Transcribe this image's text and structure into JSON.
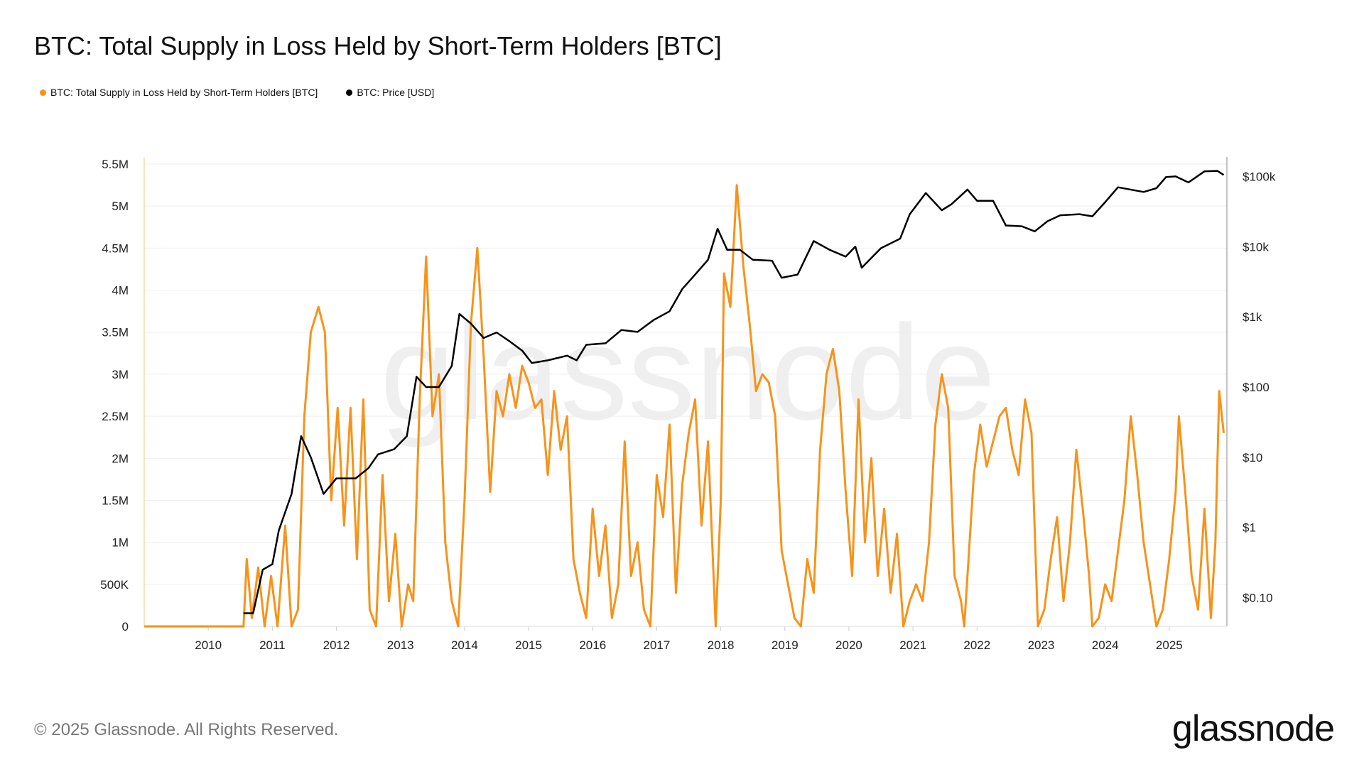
{
  "title": "BTC: Total Supply in Loss Held by Short-Term Holders [BTC]",
  "footer": "© 2025 Glassnode. All Rights Reserved.",
  "logo": "glassnode",
  "watermark": "glassnode",
  "chart_data": {
    "type": "line",
    "title": "BTC: Total Supply in Loss Held by Short-Term Holders [BTC]",
    "legend_position": "top-left",
    "grid": true,
    "x_ticks": [
      "2010",
      "2011",
      "2012",
      "2013",
      "2014",
      "2015",
      "2016",
      "2017",
      "2018",
      "2019",
      "2020",
      "2021",
      "2022",
      "2023",
      "2024",
      "2025"
    ],
    "xlim": [
      2009.0,
      2025.9
    ],
    "y_left": {
      "ticks": [
        "0",
        "500K",
        "1M",
        "1.5M",
        "2M",
        "2.5M",
        "3M",
        "3.5M",
        "4M",
        "4.5M",
        "5M",
        "5.5M"
      ],
      "tick_values": [
        0,
        500000,
        1000000,
        1500000,
        2000000,
        2500000,
        3000000,
        3500000,
        4000000,
        4500000,
        5000000,
        5500000
      ],
      "ylim": [
        0,
        5500000
      ]
    },
    "y_right": {
      "scale": "log",
      "ticks": [
        "$0.10",
        "$1",
        "$10",
        "$100",
        "$1k",
        "$10k",
        "$100k"
      ],
      "tick_values": [
        0.1,
        1,
        10,
        100,
        1000,
        10000,
        100000
      ],
      "ylim": [
        0.039,
        150000
      ]
    },
    "series": [
      {
        "name": "BTC: Total Supply in Loss Held by Short-Term Holders [BTC]",
        "color": "#f7931a",
        "axis": "left",
        "points": [
          [
            2009.0,
            0
          ],
          [
            2010.55,
            0
          ],
          [
            2010.6,
            800000
          ],
          [
            2010.68,
            100000
          ],
          [
            2010.78,
            700000
          ],
          [
            2010.88,
            0
          ],
          [
            2010.98,
            600000
          ],
          [
            2011.08,
            0
          ],
          [
            2011.2,
            1200000
          ],
          [
            2011.3,
            0
          ],
          [
            2011.4,
            200000
          ],
          [
            2011.5,
            2500000
          ],
          [
            2011.6,
            3500000
          ],
          [
            2011.72,
            3800000
          ],
          [
            2011.82,
            3500000
          ],
          [
            2011.92,
            1500000
          ],
          [
            2012.02,
            2600000
          ],
          [
            2012.12,
            1200000
          ],
          [
            2012.22,
            2600000
          ],
          [
            2012.32,
            800000
          ],
          [
            2012.42,
            2700000
          ],
          [
            2012.52,
            200000
          ],
          [
            2012.62,
            0
          ],
          [
            2012.72,
            1800000
          ],
          [
            2012.82,
            300000
          ],
          [
            2012.92,
            1100000
          ],
          [
            2013.02,
            0
          ],
          [
            2013.12,
            500000
          ],
          [
            2013.2,
            300000
          ],
          [
            2013.3,
            2700000
          ],
          [
            2013.4,
            4400000
          ],
          [
            2013.5,
            2500000
          ],
          [
            2013.6,
            3000000
          ],
          [
            2013.7,
            1000000
          ],
          [
            2013.8,
            300000
          ],
          [
            2013.9,
            0
          ],
          [
            2014.0,
            1500000
          ],
          [
            2014.1,
            3600000
          ],
          [
            2014.2,
            4500000
          ],
          [
            2014.3,
            3200000
          ],
          [
            2014.4,
            1600000
          ],
          [
            2014.5,
            2800000
          ],
          [
            2014.6,
            2500000
          ],
          [
            2014.7,
            3000000
          ],
          [
            2014.8,
            2600000
          ],
          [
            2014.9,
            3100000
          ],
          [
            2015.0,
            2900000
          ],
          [
            2015.1,
            2600000
          ],
          [
            2015.2,
            2700000
          ],
          [
            2015.3,
            1800000
          ],
          [
            2015.4,
            2800000
          ],
          [
            2015.5,
            2100000
          ],
          [
            2015.6,
            2500000
          ],
          [
            2015.7,
            800000
          ],
          [
            2015.8,
            400000
          ],
          [
            2015.9,
            100000
          ],
          [
            2016.0,
            1400000
          ],
          [
            2016.1,
            600000
          ],
          [
            2016.2,
            1200000
          ],
          [
            2016.3,
            100000
          ],
          [
            2016.4,
            500000
          ],
          [
            2016.5,
            2200000
          ],
          [
            2016.6,
            600000
          ],
          [
            2016.7,
            1000000
          ],
          [
            2016.8,
            200000
          ],
          [
            2016.9,
            0
          ],
          [
            2017.0,
            1800000
          ],
          [
            2017.1,
            1300000
          ],
          [
            2017.2,
            2400000
          ],
          [
            2017.3,
            400000
          ],
          [
            2017.4,
            1700000
          ],
          [
            2017.5,
            2300000
          ],
          [
            2017.6,
            2700000
          ],
          [
            2017.7,
            1200000
          ],
          [
            2017.8,
            2200000
          ],
          [
            2017.92,
            0
          ],
          [
            2018.0,
            1500000
          ],
          [
            2018.05,
            4200000
          ],
          [
            2018.15,
            3800000
          ],
          [
            2018.25,
            5250000
          ],
          [
            2018.35,
            4300000
          ],
          [
            2018.45,
            3600000
          ],
          [
            2018.55,
            2800000
          ],
          [
            2018.65,
            3000000
          ],
          [
            2018.75,
            2900000
          ],
          [
            2018.85,
            2500000
          ],
          [
            2018.95,
            900000
          ],
          [
            2019.05,
            500000
          ],
          [
            2019.15,
            100000
          ],
          [
            2019.25,
            0
          ],
          [
            2019.35,
            800000
          ],
          [
            2019.45,
            400000
          ],
          [
            2019.55,
            2100000
          ],
          [
            2019.65,
            3000000
          ],
          [
            2019.75,
            3300000
          ],
          [
            2019.85,
            2800000
          ],
          [
            2019.95,
            1600000
          ],
          [
            2020.05,
            600000
          ],
          [
            2020.15,
            2700000
          ],
          [
            2020.25,
            1000000
          ],
          [
            2020.35,
            2000000
          ],
          [
            2020.45,
            600000
          ],
          [
            2020.55,
            1400000
          ],
          [
            2020.65,
            400000
          ],
          [
            2020.75,
            1100000
          ],
          [
            2020.85,
            0
          ],
          [
            2020.95,
            300000
          ],
          [
            2021.05,
            500000
          ],
          [
            2021.15,
            300000
          ],
          [
            2021.25,
            1000000
          ],
          [
            2021.35,
            2400000
          ],
          [
            2021.45,
            3000000
          ],
          [
            2021.55,
            2600000
          ],
          [
            2021.65,
            600000
          ],
          [
            2021.75,
            300000
          ],
          [
            2021.8,
            0
          ],
          [
            2021.85,
            600000
          ],
          [
            2021.95,
            1800000
          ],
          [
            2022.05,
            2400000
          ],
          [
            2022.15,
            1900000
          ],
          [
            2022.25,
            2200000
          ],
          [
            2022.35,
            2500000
          ],
          [
            2022.45,
            2600000
          ],
          [
            2022.55,
            2100000
          ],
          [
            2022.65,
            1800000
          ],
          [
            2022.75,
            2700000
          ],
          [
            2022.85,
            2300000
          ],
          [
            2022.95,
            0
          ],
          [
            2023.05,
            200000
          ],
          [
            2023.15,
            800000
          ],
          [
            2023.25,
            1300000
          ],
          [
            2023.35,
            300000
          ],
          [
            2023.45,
            1000000
          ],
          [
            2023.55,
            2100000
          ],
          [
            2023.65,
            1400000
          ],
          [
            2023.75,
            600000
          ],
          [
            2023.8,
            0
          ],
          [
            2023.9,
            100000
          ],
          [
            2024.0,
            500000
          ],
          [
            2024.1,
            300000
          ],
          [
            2024.2,
            900000
          ],
          [
            2024.3,
            1500000
          ],
          [
            2024.4,
            2500000
          ],
          [
            2024.5,
            1800000
          ],
          [
            2024.6,
            1000000
          ],
          [
            2024.7,
            500000
          ],
          [
            2024.8,
            0
          ],
          [
            2024.9,
            200000
          ],
          [
            2025.0,
            800000
          ],
          [
            2025.1,
            1600000
          ],
          [
            2025.15,
            2500000
          ],
          [
            2025.25,
            1600000
          ],
          [
            2025.35,
            600000
          ],
          [
            2025.45,
            200000
          ],
          [
            2025.55,
            1400000
          ],
          [
            2025.65,
            100000
          ],
          [
            2025.72,
            1000000
          ],
          [
            2025.78,
            2800000
          ],
          [
            2025.85,
            2300000
          ]
        ]
      },
      {
        "name": "BTC: Price [USD]",
        "color": "#000000",
        "axis": "right",
        "points": [
          [
            2010.55,
            0.06
          ],
          [
            2010.7,
            0.06
          ],
          [
            2010.85,
            0.25
          ],
          [
            2011.0,
            0.3
          ],
          [
            2011.1,
            0.9
          ],
          [
            2011.3,
            3
          ],
          [
            2011.45,
            20
          ],
          [
            2011.6,
            10
          ],
          [
            2011.8,
            3
          ],
          [
            2012.0,
            5
          ],
          [
            2012.3,
            5
          ],
          [
            2012.5,
            7
          ],
          [
            2012.65,
            11
          ],
          [
            2012.9,
            13
          ],
          [
            2013.1,
            20
          ],
          [
            2013.25,
            140
          ],
          [
            2013.4,
            100
          ],
          [
            2013.6,
            100
          ],
          [
            2013.8,
            200
          ],
          [
            2013.92,
            1100
          ],
          [
            2014.1,
            800
          ],
          [
            2014.3,
            500
          ],
          [
            2014.5,
            600
          ],
          [
            2014.7,
            450
          ],
          [
            2014.9,
            330
          ],
          [
            2015.05,
            220
          ],
          [
            2015.3,
            240
          ],
          [
            2015.6,
            280
          ],
          [
            2015.75,
            240
          ],
          [
            2015.9,
            400
          ],
          [
            2016.2,
            420
          ],
          [
            2016.45,
            650
          ],
          [
            2016.7,
            610
          ],
          [
            2016.95,
            900
          ],
          [
            2017.2,
            1200
          ],
          [
            2017.4,
            2500
          ],
          [
            2017.6,
            4000
          ],
          [
            2017.8,
            6500
          ],
          [
            2017.95,
            18000
          ],
          [
            2018.1,
            9000
          ],
          [
            2018.3,
            9000
          ],
          [
            2018.5,
            6500
          ],
          [
            2018.8,
            6300
          ],
          [
            2018.95,
            3600
          ],
          [
            2019.2,
            4000
          ],
          [
            2019.45,
            12000
          ],
          [
            2019.7,
            9000
          ],
          [
            2019.95,
            7200
          ],
          [
            2020.1,
            10000
          ],
          [
            2020.2,
            5000
          ],
          [
            2020.5,
            9500
          ],
          [
            2020.8,
            13000
          ],
          [
            2020.95,
            29000
          ],
          [
            2021.2,
            58000
          ],
          [
            2021.45,
            33000
          ],
          [
            2021.6,
            40000
          ],
          [
            2021.85,
            65000
          ],
          [
            2022.0,
            45000
          ],
          [
            2022.25,
            45000
          ],
          [
            2022.45,
            20000
          ],
          [
            2022.7,
            19500
          ],
          [
            2022.9,
            16500
          ],
          [
            2023.1,
            23000
          ],
          [
            2023.3,
            28000
          ],
          [
            2023.6,
            29000
          ],
          [
            2023.8,
            27000
          ],
          [
            2024.0,
            43000
          ],
          [
            2024.2,
            70000
          ],
          [
            2024.6,
            60000
          ],
          [
            2024.8,
            68000
          ],
          [
            2024.95,
            98000
          ],
          [
            2025.1,
            100000
          ],
          [
            2025.3,
            82000
          ],
          [
            2025.55,
            118000
          ],
          [
            2025.75,
            120000
          ],
          [
            2025.85,
            105000
          ]
        ]
      }
    ]
  }
}
